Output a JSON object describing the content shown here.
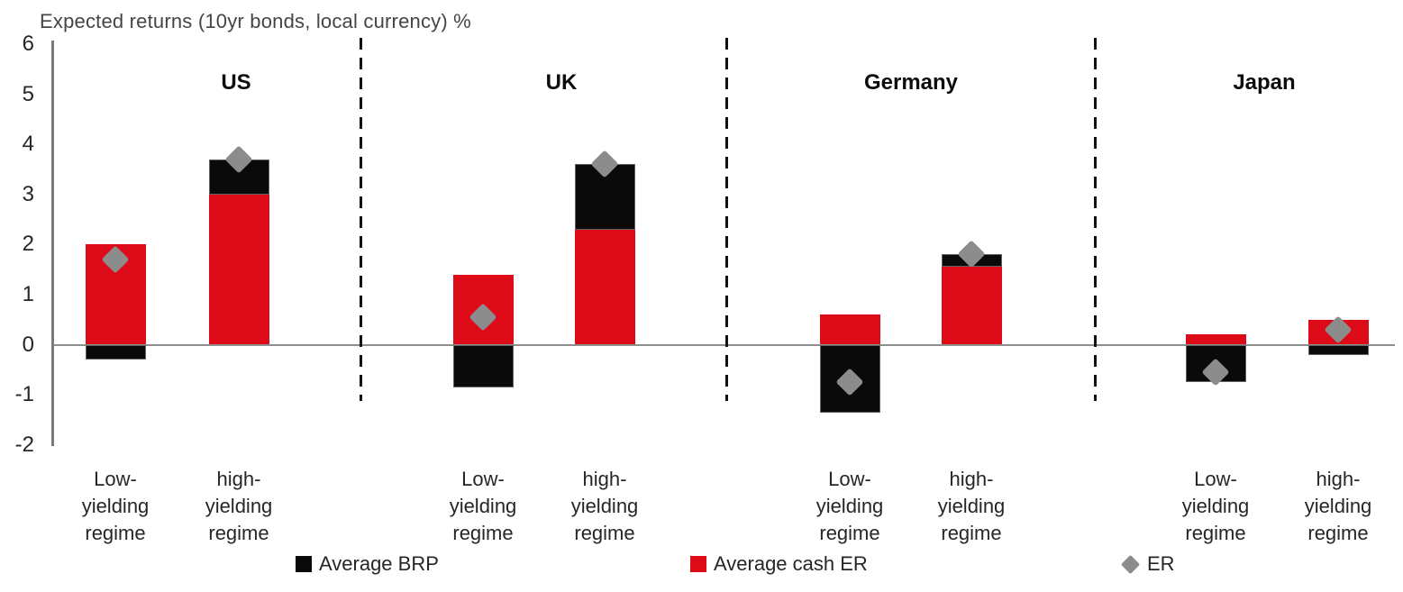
{
  "title": "Expected returns (10yr bonds, local currency) %",
  "colors": {
    "average_brp": "#0a0a0a",
    "average_cash_er": "#dd0a18",
    "er_marker": "#8c8c8c",
    "axis": "#7a7a7a",
    "zero_line": "#8e8e8e",
    "separator": "#111111",
    "text": "#262626",
    "title_text": "#454545"
  },
  "legend": {
    "items": [
      {
        "label": "Average BRP",
        "swatch": "square",
        "color": "#0a0a0a"
      },
      {
        "label": "Average cash ER",
        "swatch": "square",
        "color": "#dd0a18"
      },
      {
        "label": "ER",
        "swatch": "diamond",
        "color": "#8c8c8c"
      }
    ]
  },
  "chart_data": {
    "type": "bar",
    "stacked": true,
    "title": "Expected returns (10yr bonds, local currency) %",
    "xlabel": "",
    "ylabel": "Expected returns %",
    "ylim": [
      -2,
      6
    ],
    "yticks": [
      6,
      5,
      4,
      3,
      2,
      1,
      0,
      -1,
      -2
    ],
    "grid": false,
    "legend_position": "bottom",
    "series_names": [
      "Average BRP",
      "Average cash ER",
      "ER"
    ],
    "categories": [
      "Low-yielding regime",
      "high-yielding regime"
    ],
    "category_label_lines": [
      [
        "Low-",
        "yielding",
        "regime"
      ],
      [
        "high-",
        "yielding",
        "regime"
      ]
    ],
    "groups": [
      {
        "name": "US",
        "bars": [
          {
            "category": "Low-yielding regime",
            "average_brp": -0.3,
            "average_cash_er": 2.0,
            "er": 1.7
          },
          {
            "category": "high-yielding regime",
            "average_brp": 0.7,
            "average_cash_er": 3.0,
            "er": 3.7
          }
        ]
      },
      {
        "name": "UK",
        "bars": [
          {
            "category": "Low-yielding regime",
            "average_brp": -0.85,
            "average_cash_er": 1.4,
            "er": 0.55
          },
          {
            "category": "high-yielding regime",
            "average_brp": 1.3,
            "average_cash_er": 2.3,
            "er": 3.6
          }
        ]
      },
      {
        "name": "Germany",
        "bars": [
          {
            "category": "Low-yielding regime",
            "average_brp": -1.35,
            "average_cash_er": 0.6,
            "er": -0.75
          },
          {
            "category": "high-yielding regime",
            "average_brp": 0.25,
            "average_cash_er": 1.55,
            "er": 1.8
          }
        ]
      },
      {
        "name": "Japan",
        "bars": [
          {
            "category": "Low-yielding regime",
            "average_brp": -0.75,
            "average_cash_er": 0.2,
            "er": -0.55
          },
          {
            "category": "high-yielding regime",
            "average_brp": -0.2,
            "average_cash_er": 0.5,
            "er": 0.3
          }
        ]
      }
    ]
  }
}
